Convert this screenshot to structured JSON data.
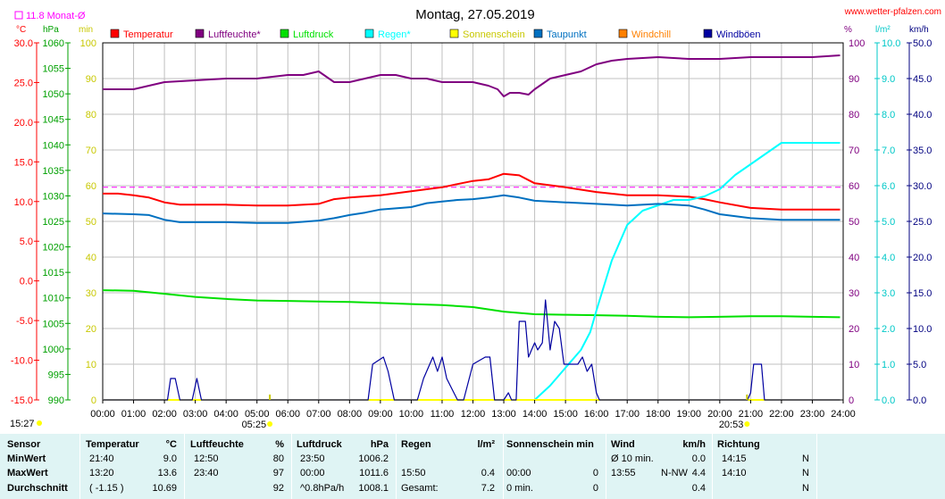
{
  "header": {
    "title": "Montag, 27.05.2019",
    "site": "www.wetter-pfalzen.com",
    "monthly_avg_label": "11.8 Monat-Ø",
    "sunrise": "05:25",
    "sunset": "20:53",
    "clock": "15:27"
  },
  "axes": {
    "temp": {
      "unit": "°C",
      "min": -15,
      "max": 30,
      "step": 5,
      "color": "#ff0000"
    },
    "pressure": {
      "unit": "hPa",
      "min": 990,
      "max": 1060,
      "step": 5,
      "color": "#00a000"
    },
    "sun": {
      "unit": "min",
      "min": 0,
      "max": 100,
      "step": 10,
      "color": "#c8c800"
    },
    "humidity": {
      "unit": "%",
      "min": 0,
      "max": 100,
      "step": 10,
      "color": "#800080"
    },
    "rain": {
      "unit": "l/m²",
      "min": 0,
      "max": 10,
      "step": 1,
      "color": "#00c8c8"
    },
    "wind": {
      "unit": "km/h",
      "min": 0,
      "max": 50,
      "step": 5,
      "color": "#000080"
    }
  },
  "chart_data": {
    "type": "line",
    "title": "Montag, 27.05.2019",
    "x_ticks": [
      "00:00",
      "01:00",
      "02:00",
      "03:00",
      "04:00",
      "05:00",
      "06:00",
      "07:00",
      "08:00",
      "09:00",
      "10:00",
      "11:00",
      "12:00",
      "13:00",
      "14:00",
      "15:00",
      "16:00",
      "17:00",
      "18:00",
      "19:00",
      "20:00",
      "21:00",
      "22:00",
      "23:00",
      "24:00"
    ],
    "monthly_avg_temp": 11.8,
    "legend": [
      {
        "name": "Temperatur",
        "color": "#ff0000"
      },
      {
        "name": "Luftfeuchte*",
        "color": "#800080"
      },
      {
        "name": "Luftdruck",
        "color": "#00e000"
      },
      {
        "name": "Regen*",
        "color": "#00ffff"
      },
      {
        "name": "Sonnenschein",
        "color": "#ffff00"
      },
      {
        "name": "Taupunkt",
        "color": "#0070c0"
      },
      {
        "name": "Windchill",
        "color": "#ff8000"
      },
      {
        "name": "Windböen",
        "color": "#0000a0"
      }
    ],
    "series": [
      {
        "name": "Temperatur",
        "axis": "temp",
        "color": "#ff0000",
        "x": [
          0,
          0.5,
          1,
          1.5,
          2,
          2.5,
          3,
          4,
          5,
          6,
          7,
          7.5,
          8,
          9,
          10,
          11,
          11.5,
          12,
          12.5,
          13,
          13.5,
          14,
          15,
          16,
          17,
          18,
          19,
          19.5,
          20,
          21,
          22,
          23,
          23.9
        ],
        "y": [
          11.0,
          11.0,
          10.8,
          10.5,
          9.9,
          9.6,
          9.6,
          9.6,
          9.5,
          9.5,
          9.7,
          10.3,
          10.5,
          10.8,
          11.3,
          11.8,
          12.2,
          12.6,
          12.8,
          13.5,
          13.3,
          12.3,
          11.8,
          11.2,
          10.8,
          10.8,
          10.6,
          10.3,
          9.9,
          9.2,
          9.0,
          9.0,
          9.0
        ]
      },
      {
        "name": "Luftfeuchte*",
        "axis": "humidity",
        "color": "#800080",
        "x": [
          0,
          0.5,
          1,
          1.5,
          2,
          3,
          4,
          5,
          6,
          6.5,
          7,
          7.5,
          8,
          8.5,
          9,
          9.5,
          10,
          10.5,
          11,
          11.5,
          12,
          12.5,
          12.8,
          13,
          13.2,
          13.5,
          13.8,
          14,
          14.5,
          15,
          15.5,
          16,
          16.5,
          17,
          18,
          19,
          20,
          21,
          22,
          23,
          23.9
        ],
        "y": [
          87,
          87,
          87,
          88,
          89,
          89.5,
          90,
          90,
          91,
          91,
          92,
          89,
          89,
          90,
          91,
          91,
          90,
          90,
          89,
          89,
          89,
          88,
          87,
          85,
          86,
          86,
          85.5,
          87,
          90,
          91,
          92,
          94,
          95,
          95.5,
          96,
          95.5,
          95.5,
          96,
          96,
          96,
          96.5
        ]
      },
      {
        "name": "Luftdruck",
        "axis": "pressure",
        "color": "#00e000",
        "x": [
          0,
          1,
          2,
          3,
          4,
          5,
          6,
          7,
          8,
          9,
          10,
          11,
          12,
          13,
          14,
          15,
          16,
          17,
          18,
          19,
          20,
          21,
          22,
          23,
          23.9
        ],
        "y": [
          1011.5,
          1011.4,
          1010.8,
          1010.2,
          1009.8,
          1009.5,
          1009.4,
          1009.3,
          1009.2,
          1009.0,
          1008.8,
          1008.6,
          1008.2,
          1007.3,
          1006.8,
          1006.7,
          1006.6,
          1006.5,
          1006.3,
          1006.2,
          1006.3,
          1006.4,
          1006.4,
          1006.3,
          1006.2
        ]
      },
      {
        "name": "Regen*",
        "axis": "rain",
        "color": "#00ffff",
        "x": [
          0,
          14,
          14.5,
          15,
          15.5,
          15.8,
          16,
          16.5,
          17,
          17.5,
          18,
          18.5,
          19,
          19.5,
          20,
          20.5,
          21,
          21.5,
          22,
          22.5,
          23,
          23.9
        ],
        "y": [
          0,
          0,
          0.4,
          0.9,
          1.4,
          1.9,
          2.5,
          3.9,
          4.9,
          5.3,
          5.45,
          5.6,
          5.6,
          5.7,
          5.9,
          6.3,
          6.6,
          6.9,
          7.2,
          7.2,
          7.2,
          7.2
        ]
      },
      {
        "name": "Sonnenschein",
        "axis": "sun",
        "color": "#ffff00",
        "x": [
          0,
          23.9
        ],
        "y": [
          0,
          0
        ]
      },
      {
        "name": "Taupunkt",
        "axis": "temp",
        "color": "#0070c0",
        "x": [
          0,
          1,
          1.5,
          2,
          2.5,
          3,
          4,
          5,
          6,
          7,
          7.5,
          8,
          8.5,
          9,
          10,
          10.5,
          11,
          11.5,
          12,
          12.5,
          13,
          13.5,
          14,
          15,
          16,
          17,
          18,
          19,
          19.5,
          20,
          21,
          22,
          23,
          23.9
        ],
        "y": [
          8.5,
          8.4,
          8.3,
          7.7,
          7.4,
          7.4,
          7.4,
          7.3,
          7.3,
          7.6,
          7.9,
          8.3,
          8.6,
          9.0,
          9.3,
          9.8,
          10.0,
          10.2,
          10.3,
          10.5,
          10.8,
          10.5,
          10.1,
          9.9,
          9.7,
          9.5,
          9.7,
          9.5,
          9.0,
          8.4,
          7.9,
          7.7,
          7.7,
          7.7
        ]
      },
      {
        "name": "Windböen",
        "axis": "wind",
        "color": "#0000a0",
        "x": [
          0,
          2.1,
          2.2,
          2.35,
          2.5,
          2.9,
          3.05,
          3.2,
          8.6,
          8.75,
          9.1,
          9.25,
          9.45,
          9.6,
          9.8,
          10.2,
          10.4,
          10.7,
          10.85,
          11,
          11.15,
          11.5,
          11.7,
          12,
          12.4,
          12.55,
          12.7,
          13,
          13.15,
          13.25,
          13.4,
          13.5,
          13.7,
          13.8,
          13.9,
          14.0,
          14.1,
          14.25,
          14.35,
          14.5,
          14.65,
          14.8,
          14.95,
          15.1,
          15.25,
          15.4,
          15.55,
          15.7,
          15.85,
          16,
          16.1,
          16.5,
          16.7,
          16.95,
          20.9,
          21.0,
          21.1,
          21.35,
          21.45,
          23.9
        ],
        "y": [
          0,
          0,
          3,
          3,
          0,
          0,
          3,
          0,
          0,
          5,
          6,
          4,
          0,
          0,
          0,
          0,
          3,
          6,
          4,
          6,
          3,
          0,
          0,
          5,
          6,
          6,
          0,
          0,
          1,
          0,
          0,
          11,
          11,
          6,
          7,
          8,
          7,
          8,
          14,
          7,
          11,
          10,
          5,
          5,
          5,
          5,
          6,
          4,
          5,
          1,
          0,
          0,
          0,
          0,
          0,
          1,
          5,
          5,
          0,
          0
        ]
      }
    ]
  },
  "stats": {
    "headers": {
      "sensor": "Sensor",
      "temp": "Temperatur",
      "temp_unit": "°C",
      "hum": "Luftfeuchte",
      "hum_unit": "%",
      "press": "Luftdruck",
      "press_unit": "hPa",
      "rain": "Regen",
      "rain_unit": "l/m²",
      "sun": "Sonnenschein min",
      "wind": "Wind",
      "wind_unit": "km/h",
      "dir": "Richtung"
    },
    "rows": [
      {
        "label": "MinWert",
        "temp_t": "21:40",
        "temp_v": "9.0",
        "hum_t": "12:50",
        "hum_v": "80",
        "press_t": "23:50",
        "press_v": "1006.2",
        "rain_t": "",
        "rain_v": "",
        "sun_t": "",
        "sun_v": "",
        "wind_t": "Ø 10 min.",
        "wind_d": "",
        "wind_v": "0.0",
        "dir_t": "14:15",
        "dir_v": "N"
      },
      {
        "label": "MaxWert",
        "temp_t": "13:20",
        "temp_v": "13.6",
        "hum_t": "23:40",
        "hum_v": "97",
        "press_t": "00:00",
        "press_v": "1011.6",
        "rain_t": "15:50",
        "rain_v": "0.4",
        "sun_t": "00:00",
        "sun_v": "0",
        "wind_t": "13:55",
        "wind_d": "N-NW",
        "wind_v": "4.4",
        "dir_t": "14:10",
        "dir_v": "N"
      },
      {
        "label": "Durchschnitt",
        "temp_t": "( -1.15 )",
        "temp_v": "10.69",
        "hum_t": "",
        "hum_v": "92",
        "press_t": "^0.8hPa/h",
        "press_v": "1008.1",
        "rain_t": "Gesamt:",
        "rain_v": "7.2",
        "sun_t": "0 min.",
        "sun_v": "0",
        "wind_t": "",
        "wind_d": "",
        "wind_v": "0.4",
        "dir_t": "",
        "dir_v": "N"
      }
    ]
  }
}
